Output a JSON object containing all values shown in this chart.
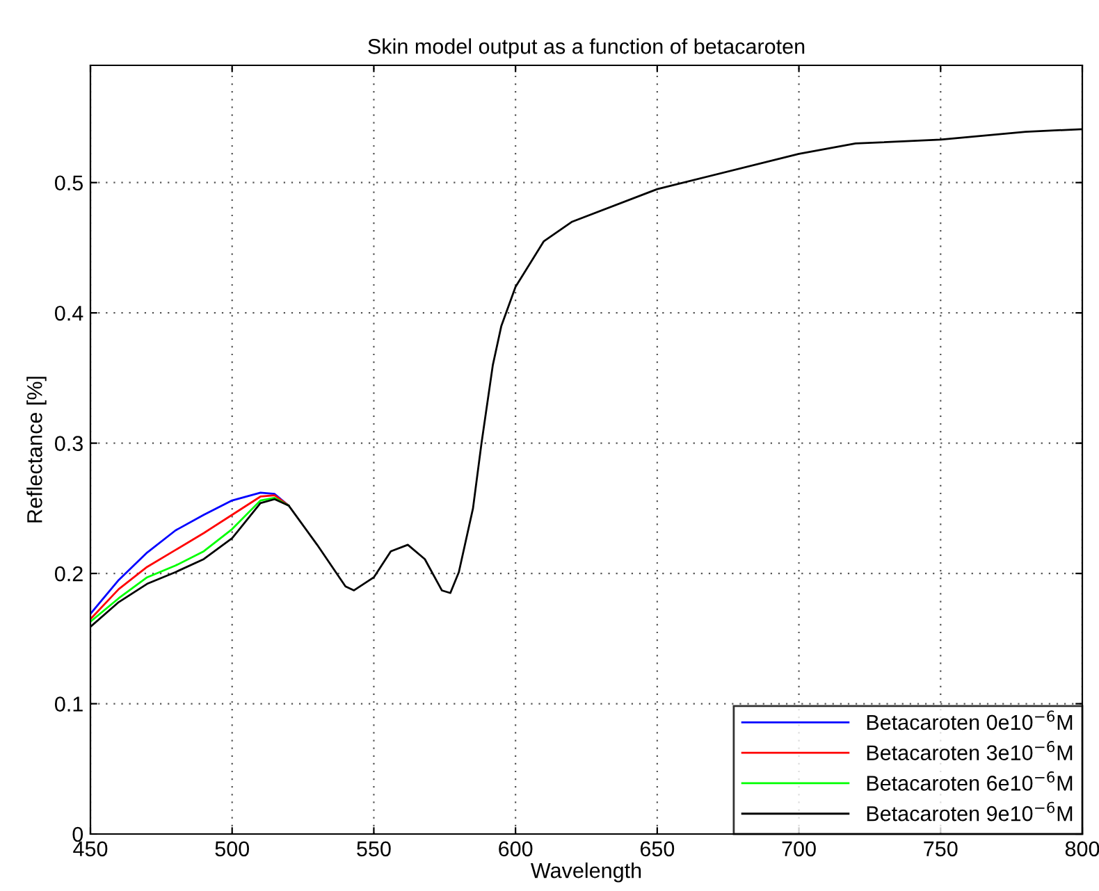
{
  "chart_data": {
    "type": "line",
    "title": "Skin model output as a function of betacaroten",
    "xlabel": "Wavelength",
    "ylabel": "Reflectance [%]",
    "x": [
      450,
      460,
      470,
      480,
      490,
      500,
      510,
      515,
      520,
      530,
      540,
      543,
      550,
      556,
      562,
      568,
      574,
      577,
      580,
      585,
      588,
      592,
      595,
      600,
      610,
      620,
      650,
      700,
      720,
      750,
      760,
      780,
      800
    ],
    "xlim": [
      450,
      800
    ],
    "ylim": [
      0,
      0.59
    ],
    "xticks": [
      450,
      500,
      550,
      600,
      650,
      700,
      750,
      800
    ],
    "yticks": [
      0,
      0.1,
      0.2,
      0.3,
      0.4,
      0.5
    ],
    "grid": true,
    "legend": "bottom right",
    "line_style": "solid",
    "marker": "none",
    "series": [
      {
        "name": "Betacaroten 0e10$^{−6}$M",
        "color": "#0000ff",
        "values": [
          0.169,
          0.195,
          0.216,
          0.233,
          0.245,
          0.256,
          0.262,
          0.261,
          0.252,
          null,
          null,
          null,
          null,
          null,
          null,
          null,
          null,
          null,
          null,
          null,
          null,
          null,
          null,
          null,
          null,
          null,
          null,
          null,
          null,
          null,
          null,
          null,
          null
        ]
      },
      {
        "name": "Betacaroten 3e10$^{−6}$M",
        "color": "#ff0000",
        "values": [
          0.165,
          0.188,
          0.205,
          0.218,
          0.231,
          0.245,
          0.259,
          0.26,
          0.252,
          null,
          null,
          null,
          null,
          null,
          null,
          null,
          null,
          null,
          null,
          null,
          null,
          null,
          null,
          null,
          null,
          null,
          null,
          null,
          null,
          null,
          null,
          null,
          null
        ]
      },
      {
        "name": "Betacaroten 6e10$^{−6}$M",
        "color": "#00ff00",
        "values": [
          0.163,
          0.181,
          0.197,
          0.206,
          0.217,
          0.234,
          0.256,
          0.258,
          0.252,
          null,
          null,
          null,
          null,
          null,
          null,
          null,
          null,
          null,
          null,
          null,
          null,
          null,
          null,
          null,
          null,
          null,
          null,
          null,
          null,
          null,
          null,
          null,
          null
        ]
      },
      {
        "name": "Betacaroten 9e10$^{−6}$M",
        "color": "#000000",
        "values": [
          0.159,
          0.178,
          0.192,
          0.201,
          0.211,
          0.227,
          0.254,
          0.257,
          0.252,
          0.222,
          0.19,
          0.187,
          0.197,
          0.217,
          0.222,
          0.211,
          0.187,
          0.185,
          0.201,
          0.25,
          0.3,
          0.36,
          0.39,
          0.42,
          0.455,
          0.47,
          0.495,
          0.522,
          0.53,
          0.533,
          0.535,
          0.539,
          0.541
        ]
      }
    ]
  }
}
